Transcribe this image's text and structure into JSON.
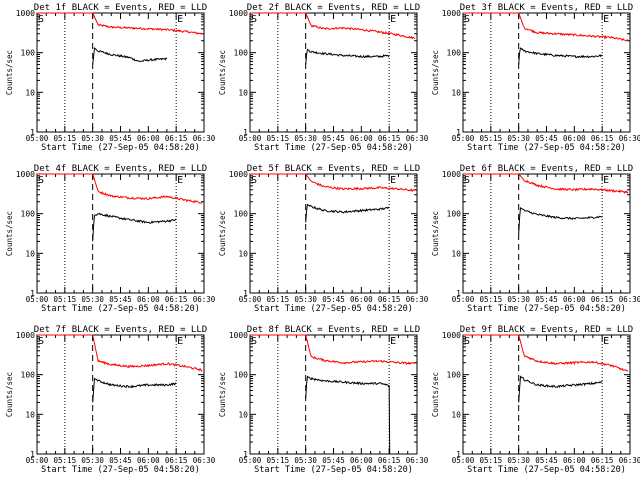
{
  "figure": {
    "xlabel": "Start Time (27-Sep-05 04:58:20)",
    "ylabel": "Counts/sec"
  },
  "chart_data": [
    {
      "type": "line",
      "title": "Det 1f BLACK = Events, RED = LLD",
      "xlabel": "Start Time (27-Sep-05 04:58:20)",
      "ylabel": "Counts/sec",
      "x_ticks": [
        "05:00",
        "05:15",
        "05:30",
        "05:45",
        "06:00",
        "06:15",
        "06:30"
      ],
      "x_range_min": [
        0,
        90
      ],
      "ylim": [
        1,
        1000
      ],
      "yscale": "log",
      "y_ticks": [
        "1",
        "10",
        "100",
        "1000"
      ],
      "annotations": [
        {
          "text": "S",
          "at_min": 0
        },
        {
          "text": "E",
          "at_min": 75
        }
      ],
      "dotted_lines_min": [
        15,
        75
      ],
      "dashed_line_min": 30,
      "series": [
        {
          "color": "#ff0000",
          "x": [
            0,
            2,
            5,
            30,
            33,
            40,
            50,
            60,
            70,
            80,
            89
          ],
          "values": [
            1000,
            1000,
            1000,
            1000,
            500,
            440,
            420,
            400,
            380,
            340,
            300
          ]
        },
        {
          "color": "#000000",
          "x": [
            30,
            30.5,
            31,
            33,
            40,
            50,
            55,
            60,
            70
          ],
          "values": [
            50,
            80,
            130,
            110,
            90,
            75,
            60,
            65,
            70
          ]
        }
      ]
    },
    {
      "type": "line",
      "title": "Det 2f BLACK = Events, RED = LLD",
      "xlabel": "Start Time (27-Sep-05 04:58:20)",
      "ylabel": "Counts/sec",
      "x_ticks": [
        "05:00",
        "05:15",
        "05:30",
        "05:45",
        "06:00",
        "06:15",
        "06:30"
      ],
      "x_range_min": [
        0,
        90
      ],
      "ylim": [
        1,
        1000
      ],
      "yscale": "log",
      "y_ticks": [
        "1",
        "10",
        "100",
        "1000"
      ],
      "annotations": [
        {
          "text": "S",
          "at_min": 0
        },
        {
          "text": "E",
          "at_min": 75
        }
      ],
      "dotted_lines_min": [
        15,
        75
      ],
      "dashed_line_min": 30,
      "series": [
        {
          "color": "#ff0000",
          "x": [
            0,
            2,
            5,
            30,
            33,
            40,
            50,
            60,
            70,
            80,
            89
          ],
          "values": [
            1000,
            1000,
            1000,
            1000,
            480,
            400,
            420,
            380,
            330,
            280,
            230
          ]
        },
        {
          "color": "#000000",
          "x": [
            30,
            30.5,
            31,
            33,
            40,
            50,
            60,
            70,
            75
          ],
          "values": [
            50,
            90,
            120,
            105,
            95,
            85,
            80,
            80,
            85
          ]
        }
      ]
    },
    {
      "type": "line",
      "title": "Det 3f BLACK = Events, RED = LLD",
      "xlabel": "Start Time (27-Sep-05 04:58:20)",
      "ylabel": "Counts/sec",
      "x_ticks": [
        "05:00",
        "05:15",
        "05:30",
        "05:45",
        "06:00",
        "06:15",
        "06:30"
      ],
      "x_range_min": [
        0,
        90
      ],
      "ylim": [
        1,
        1000
      ],
      "yscale": "log",
      "y_ticks": [
        "1",
        "10",
        "100",
        "1000"
      ],
      "annotations": [
        {
          "text": "S",
          "at_min": 0
        },
        {
          "text": "E",
          "at_min": 75
        }
      ],
      "dotted_lines_min": [
        15,
        75
      ],
      "dashed_line_min": 30,
      "series": [
        {
          "color": "#ff0000",
          "x": [
            0,
            2,
            5,
            30,
            33,
            40,
            50,
            60,
            70,
            80,
            89
          ],
          "values": [
            1000,
            1000,
            1000,
            1000,
            420,
            320,
            300,
            280,
            260,
            240,
            200
          ]
        },
        {
          "color": "#000000",
          "x": [
            30,
            30.5,
            31,
            33,
            40,
            50,
            60,
            70,
            75
          ],
          "values": [
            50,
            100,
            130,
            110,
            95,
            85,
            80,
            80,
            85
          ]
        }
      ]
    },
    {
      "type": "line",
      "title": "Det 4f BLACK = Events, RED = LLD",
      "xlabel": "Start Time (27-Sep-05 04:58:20)",
      "ylabel": "Counts/sec",
      "x_ticks": [
        "05:00",
        "05:15",
        "05:30",
        "05:45",
        "06:00",
        "06:15",
        "06:30"
      ],
      "x_range_min": [
        0,
        90
      ],
      "ylim": [
        1,
        1000
      ],
      "yscale": "log",
      "y_ticks": [
        "1",
        "10",
        "100",
        "1000"
      ],
      "annotations": [
        {
          "text": "S",
          "at_min": 0
        },
        {
          "text": "E",
          "at_min": 75
        }
      ],
      "dotted_lines_min": [
        15,
        75
      ],
      "dashed_line_min": 30,
      "series": [
        {
          "color": "#ff0000",
          "x": [
            0,
            2,
            5,
            30,
            33,
            40,
            50,
            60,
            70,
            80,
            89
          ],
          "values": [
            1000,
            1000,
            1000,
            1000,
            360,
            280,
            250,
            240,
            270,
            220,
            190
          ]
        },
        {
          "color": "#000000",
          "x": [
            30,
            30.5,
            31,
            33,
            40,
            50,
            60,
            70,
            75
          ],
          "values": [
            20,
            50,
            90,
            100,
            85,
            70,
            60,
            65,
            70
          ]
        }
      ]
    },
    {
      "type": "line",
      "title": "Det 5f BLACK = Events, RED = LLD",
      "xlabel": "Start Time (27-Sep-05 04:58:20)",
      "ylabel": "Counts/sec",
      "x_ticks": [
        "05:00",
        "05:15",
        "05:30",
        "05:45",
        "06:00",
        "06:15",
        "06:30"
      ],
      "x_range_min": [
        0,
        90
      ],
      "ylim": [
        1,
        1000
      ],
      "yscale": "log",
      "y_ticks": [
        "1",
        "10",
        "100",
        "1000"
      ],
      "annotations": [
        {
          "text": "S",
          "at_min": 0
        },
        {
          "text": "E",
          "at_min": 75
        }
      ],
      "dotted_lines_min": [
        15,
        75
      ],
      "dashed_line_min": 30,
      "series": [
        {
          "color": "#ff0000",
          "x": [
            0,
            2,
            5,
            30,
            33,
            40,
            50,
            60,
            70,
            80,
            89
          ],
          "values": [
            1000,
            1000,
            1000,
            1000,
            650,
            480,
            420,
            430,
            450,
            420,
            380
          ]
        },
        {
          "color": "#000000",
          "x": [
            30,
            30.5,
            31,
            33,
            40,
            50,
            60,
            70,
            75
          ],
          "values": [
            60,
            120,
            170,
            150,
            120,
            110,
            120,
            130,
            140
          ]
        }
      ]
    },
    {
      "type": "line",
      "title": "Det 6f BLACK = Events, RED = LLD",
      "xlabel": "Start Time (27-Sep-05 04:58:20)",
      "ylabel": "Counts/sec",
      "x_ticks": [
        "05:00",
        "05:15",
        "05:30",
        "05:45",
        "06:00",
        "06:15",
        "06:30"
      ],
      "x_range_min": [
        0,
        90
      ],
      "ylim": [
        1,
        1000
      ],
      "yscale": "log",
      "y_ticks": [
        "1",
        "10",
        "100",
        "1000"
      ],
      "annotations": [
        {
          "text": "S",
          "at_min": 0
        },
        {
          "text": "E",
          "at_min": 75
        }
      ],
      "dotted_lines_min": [
        15,
        75
      ],
      "dashed_line_min": 30,
      "series": [
        {
          "color": "#ff0000",
          "x": [
            0,
            2,
            5,
            30,
            33,
            40,
            50,
            60,
            70,
            80,
            89
          ],
          "values": [
            1000,
            1000,
            1000,
            1000,
            700,
            520,
            420,
            400,
            420,
            380,
            350
          ]
        },
        {
          "color": "#000000",
          "x": [
            30,
            30.5,
            31,
            33,
            40,
            50,
            60,
            70,
            75
          ],
          "values": [
            30,
            80,
            140,
            120,
            95,
            80,
            75,
            80,
            85
          ]
        }
      ]
    },
    {
      "type": "line",
      "title": "Det 7f BLACK = Events, RED = LLD",
      "xlabel": "Start Time (27-Sep-05 04:58:20)",
      "ylabel": "Counts/sec",
      "x_ticks": [
        "05:00",
        "05:15",
        "05:30",
        "05:45",
        "06:00",
        "06:15",
        "06:30"
      ],
      "x_range_min": [
        0,
        90
      ],
      "ylim": [
        1,
        1000
      ],
      "yscale": "log",
      "y_ticks": [
        "1",
        "10",
        "100",
        "1000"
      ],
      "annotations": [
        {
          "text": "S",
          "at_min": 0
        },
        {
          "text": "E",
          "at_min": 75
        }
      ],
      "dotted_lines_min": [
        15,
        75
      ],
      "dashed_line_min": 30,
      "series": [
        {
          "color": "#ff0000",
          "x": [
            0,
            2,
            5,
            30,
            33,
            40,
            50,
            60,
            70,
            80,
            89
          ],
          "values": [
            1000,
            1000,
            1000,
            1000,
            220,
            180,
            160,
            170,
            190,
            160,
            130
          ]
        },
        {
          "color": "#000000",
          "x": [
            30,
            30.5,
            31,
            33,
            40,
            50,
            60,
            70,
            75
          ],
          "values": [
            20,
            40,
            80,
            70,
            55,
            50,
            55,
            55,
            60
          ]
        }
      ]
    },
    {
      "type": "line",
      "title": "Det 8f BLACK = Events, RED = LLD",
      "xlabel": "Start Time (27-Sep-05 04:58:20)",
      "ylabel": "Counts/sec",
      "x_ticks": [
        "05:00",
        "05:15",
        "05:30",
        "05:45",
        "06:00",
        "06:15",
        "06:30"
      ],
      "x_range_min": [
        0,
        90
      ],
      "ylim": [
        1,
        1000
      ],
      "yscale": "log",
      "y_ticks": [
        "1",
        "10",
        "100",
        "1000"
      ],
      "annotations": [
        {
          "text": "S",
          "at_min": 0
        },
        {
          "text": "E",
          "at_min": 75
        }
      ],
      "dotted_lines_min": [
        15,
        75
      ],
      "dashed_line_min": 30,
      "series": [
        {
          "color": "#ff0000",
          "x": [
            0,
            2,
            5,
            30,
            33,
            40,
            50,
            60,
            70,
            80,
            89
          ],
          "values": [
            1000,
            1000,
            1000,
            1000,
            280,
            230,
            200,
            210,
            220,
            200,
            190
          ]
        },
        {
          "color": "#000000",
          "x": [
            30,
            30.5,
            31,
            33,
            40,
            50,
            60,
            70,
            74,
            75,
            75.3
          ],
          "values": [
            25,
            60,
            90,
            80,
            70,
            65,
            60,
            60,
            55,
            50,
            1
          ]
        }
      ]
    },
    {
      "type": "line",
      "title": "Det 9f BLACK = Events, RED = LLD",
      "xlabel": "Start Time (27-Sep-05 04:58:20)",
      "ylabel": "Counts/sec",
      "x_ticks": [
        "05:00",
        "05:15",
        "05:30",
        "05:45",
        "06:00",
        "06:15",
        "06:30"
      ],
      "x_range_min": [
        0,
        90
      ],
      "ylim": [
        1,
        1000
      ],
      "yscale": "log",
      "y_ticks": [
        "1",
        "10",
        "100",
        "1000"
      ],
      "annotations": [
        {
          "text": "S",
          "at_min": 0
        },
        {
          "text": "E",
          "at_min": 75
        }
      ],
      "dotted_lines_min": [
        15,
        75
      ],
      "dashed_line_min": 30,
      "series": [
        {
          "color": "#ff0000",
          "x": [
            0,
            2,
            5,
            30,
            33,
            40,
            50,
            60,
            70,
            80,
            89
          ],
          "values": [
            1000,
            1000,
            1000,
            1000,
            300,
            220,
            190,
            200,
            210,
            170,
            120
          ]
        },
        {
          "color": "#000000",
          "x": [
            30,
            30.5,
            31,
            33,
            40,
            50,
            60,
            70,
            75
          ],
          "values": [
            20,
            45,
            90,
            75,
            55,
            50,
            55,
            60,
            65
          ]
        }
      ]
    }
  ]
}
